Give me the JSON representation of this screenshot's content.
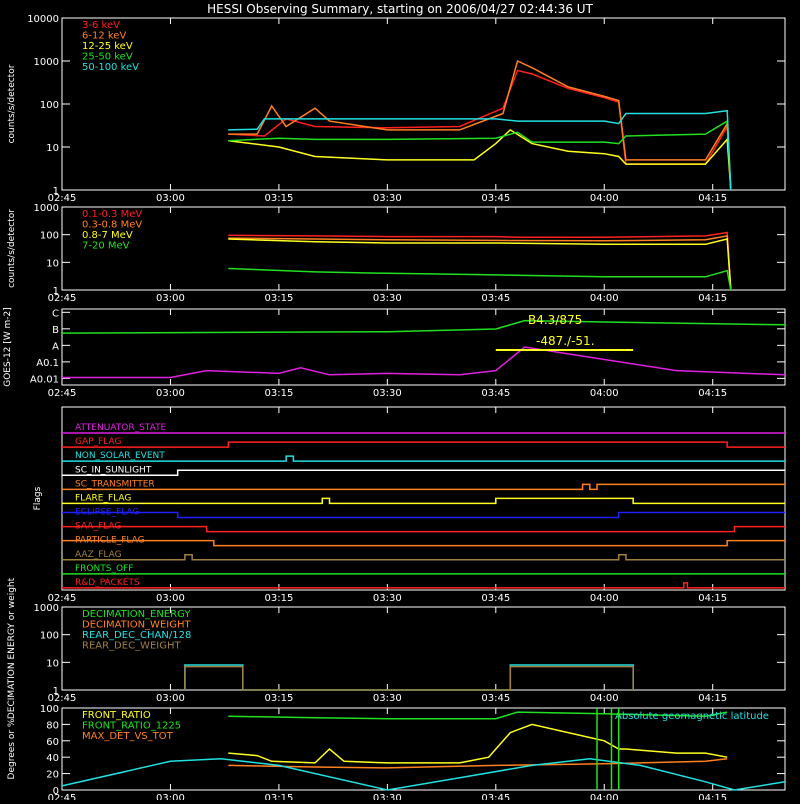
{
  "title": "HESSI Observing Summary, starting on 2006/04/27 02:44:36 UT",
  "time_ticks": [
    "02:45",
    "03:00",
    "03:15",
    "03:30",
    "03:45",
    "04:00",
    "04:15"
  ],
  "colors": {
    "background": "#000000",
    "axes": "#ffffff",
    "red": "#ff2020",
    "orange": "#ff8020",
    "yellow": "#ffff20",
    "green": "#20e020",
    "cyan": "#20e0e0",
    "blue": "#2020ff",
    "magenta": "#e020e0",
    "brown": "#c07020",
    "olive": "#a08040"
  },
  "chart_data": [
    {
      "id": "xray",
      "type": "line",
      "ylabel": "counts/s/detector",
      "yscale": "log",
      "ylim": [
        1,
        10000
      ],
      "y_tick_labels": [
        "1",
        "10",
        "100",
        "1000",
        "10000"
      ],
      "x_units": "UT time",
      "xlim": [
        "02:45",
        "04:25"
      ],
      "legend": [
        {
          "name": "3-6 keV",
          "color": "#ff2020"
        },
        {
          "name": "6-12 keV",
          "color": "#ff8020"
        },
        {
          "name": "12-25 keV",
          "color": "#ffff20"
        },
        {
          "name": "25-50 keV",
          "color": "#20e020"
        },
        {
          "name": "50-100 keV",
          "color": "#20e0e0"
        }
      ],
      "series": [
        {
          "name": "3-6 keV",
          "color": "#ff2020",
          "points": [
            [
              "03:08",
              20
            ],
            [
              "03:13",
              18
            ],
            [
              "03:16",
              45
            ],
            [
              "03:20",
              30
            ],
            [
              "03:30",
              28
            ],
            [
              "03:40",
              30
            ],
            [
              "03:46",
              80
            ],
            [
              "03:48",
              600
            ],
            [
              "03:50",
              500
            ],
            [
              "03:55",
              230
            ],
            [
              "04:00",
              140
            ],
            [
              "04:02",
              110
            ],
            [
              "04:03",
              4
            ],
            [
              "04:14",
              4
            ],
            [
              "04:17",
              30
            ],
            [
              "04:17.5",
              1
            ]
          ]
        },
        {
          "name": "6-12 keV",
          "color": "#ff8020",
          "points": [
            [
              "03:08",
              20
            ],
            [
              "03:12",
              20
            ],
            [
              "03:14",
              90
            ],
            [
              "03:16",
              30
            ],
            [
              "03:20",
              80
            ],
            [
              "03:22",
              40
            ],
            [
              "03:30",
              25
            ],
            [
              "03:40",
              25
            ],
            [
              "03:46",
              60
            ],
            [
              "03:48",
              1000
            ],
            [
              "03:50",
              700
            ],
            [
              "03:55",
              250
            ],
            [
              "04:00",
              150
            ],
            [
              "04:02",
              120
            ],
            [
              "04:03",
              5
            ],
            [
              "04:14",
              5
            ],
            [
              "04:17",
              35
            ],
            [
              "04:17.5",
              1
            ]
          ]
        },
        {
          "name": "12-25 keV",
          "color": "#ffff20",
          "points": [
            [
              "03:08",
              14
            ],
            [
              "03:15",
              10
            ],
            [
              "03:20",
              6
            ],
            [
              "03:30",
              5
            ],
            [
              "03:42",
              5
            ],
            [
              "03:45",
              12
            ],
            [
              "03:47",
              25
            ],
            [
              "03:50",
              12
            ],
            [
              "03:55",
              8
            ],
            [
              "04:00",
              7
            ],
            [
              "04:02",
              6
            ],
            [
              "04:03",
              4
            ],
            [
              "04:14",
              4
            ],
            [
              "04:17",
              15
            ],
            [
              "04:17.5",
              1
            ]
          ]
        },
        {
          "name": "25-50 keV",
          "color": "#20e020",
          "points": [
            [
              "03:08",
              14
            ],
            [
              "03:15",
              16
            ],
            [
              "03:20",
              15
            ],
            [
              "03:30",
              15
            ],
            [
              "03:45",
              16
            ],
            [
              "03:48",
              22
            ],
            [
              "03:50",
              13
            ],
            [
              "04:00",
              13
            ],
            [
              "04:02",
              12
            ],
            [
              "04:03",
              18
            ],
            [
              "04:14",
              20
            ],
            [
              "04:17",
              40
            ],
            [
              "04:17.5",
              1
            ]
          ]
        },
        {
          "name": "50-100 keV",
          "color": "#20e0e0",
          "points": [
            [
              "03:08",
              25
            ],
            [
              "03:12",
              26
            ],
            [
              "03:13",
              45
            ],
            [
              "03:30",
              45
            ],
            [
              "03:45",
              45
            ],
            [
              "03:48",
              40
            ],
            [
              "04:00",
              40
            ],
            [
              "04:02",
              35
            ],
            [
              "04:03",
              60
            ],
            [
              "04:14",
              60
            ],
            [
              "04:17",
              70
            ],
            [
              "04:17.5",
              1
            ]
          ]
        }
      ]
    },
    {
      "id": "gamma",
      "type": "line",
      "ylabel": "counts/s/detector",
      "yscale": "log",
      "ylim": [
        1,
        1000
      ],
      "y_tick_labels": [
        "1",
        "10",
        "100",
        "1000"
      ],
      "legend": [
        {
          "name": "0.1-0.3 MeV",
          "color": "#ff2020"
        },
        {
          "name": "0.3-0.8 MeV",
          "color": "#ff8020"
        },
        {
          "name": "0.8-7 MeV",
          "color": "#ffff20"
        },
        {
          "name": "7-20 MeV",
          "color": "#20e020"
        }
      ],
      "series": [
        {
          "name": "0.1-0.3 MeV",
          "color": "#ff2020",
          "points": [
            [
              "03:08",
              95
            ],
            [
              "03:20",
              90
            ],
            [
              "03:30",
              85
            ],
            [
              "03:45",
              85
            ],
            [
              "03:48",
              80
            ],
            [
              "04:00",
              80
            ],
            [
              "04:14",
              90
            ],
            [
              "04:17",
              120
            ],
            [
              "04:17.5",
              1
            ]
          ]
        },
        {
          "name": "0.3-0.8 MeV",
          "color": "#ff8020",
          "points": [
            [
              "03:08",
              75
            ],
            [
              "03:20",
              70
            ],
            [
              "03:30",
              65
            ],
            [
              "03:45",
              62
            ],
            [
              "04:00",
              60
            ],
            [
              "04:14",
              65
            ],
            [
              "04:17",
              90
            ],
            [
              "04:17.5",
              1
            ]
          ]
        },
        {
          "name": "0.8-7 MeV",
          "color": "#ffff20",
          "points": [
            [
              "03:08",
              70
            ],
            [
              "03:20",
              55
            ],
            [
              "03:30",
              50
            ],
            [
              "03:45",
              50
            ],
            [
              "04:00",
              45
            ],
            [
              "04:14",
              45
            ],
            [
              "04:17",
              70
            ],
            [
              "04:17.5",
              1
            ]
          ]
        },
        {
          "name": "7-20 MeV",
          "color": "#20e020",
          "points": [
            [
              "03:08",
              6
            ],
            [
              "03:20",
              4.5
            ],
            [
              "03:30",
              4
            ],
            [
              "03:45",
              3.5
            ],
            [
              "04:00",
              3
            ],
            [
              "04:14",
              3
            ],
            [
              "04:17",
              5
            ],
            [
              "04:17.5",
              1
            ]
          ]
        }
      ]
    },
    {
      "id": "goes",
      "type": "line",
      "ylabel": "GOES-12 [W m-2]",
      "yscale": "log",
      "y_tick_labels": [
        "A0.01",
        "A0.1",
        "A",
        "B",
        "C"
      ],
      "annotations": [
        "B4.3/875",
        "-487./-51."
      ],
      "series": [
        {
          "name": "high channel",
          "color": "#20e020",
          "level_points": [
            [
              "02:45",
              8.5
            ],
            [
              "03:30",
              8.6
            ],
            [
              "03:45",
              8.8
            ],
            [
              "03:49",
              9.4
            ],
            [
              "04:00",
              9.3
            ],
            [
              "04:25",
              9.1
            ]
          ]
        },
        {
          "name": "low channel",
          "color": "#e020e0",
          "level_points": [
            [
              "02:45",
              5.3
            ],
            [
              "03:00",
              5.3
            ],
            [
              "03:05",
              5.8
            ],
            [
              "03:15",
              5.6
            ],
            [
              "03:18",
              6.0
            ],
            [
              "03:22",
              5.5
            ],
            [
              "03:30",
              5.6
            ],
            [
              "03:40",
              5.5
            ],
            [
              "03:45",
              5.8
            ],
            [
              "03:49",
              7.5
            ],
            [
              "03:55",
              7.0
            ],
            [
              "04:00",
              6.6
            ],
            [
              "04:10",
              5.8
            ],
            [
              "04:25",
              5.5
            ]
          ]
        }
      ]
    },
    {
      "id": "flags",
      "type": "line",
      "ylabel": "Flags",
      "flags": [
        {
          "name": "ATTENUATOR_STATE",
          "color": "#e020e0"
        },
        {
          "name": "GAP_FLAG",
          "color": "#ff2020"
        },
        {
          "name": "NON_SOLAR_EVENT",
          "color": "#20e0e0"
        },
        {
          "name": "SC_IN_SUNLIGHT",
          "color": "#ffffff"
        },
        {
          "name": "SC_TRANSMITTER",
          "color": "#ff8020"
        },
        {
          "name": "FLARE_FLAG",
          "color": "#ffff20"
        },
        {
          "name": "ECLIPSE_FLAG",
          "color": "#2020ff"
        },
        {
          "name": "SAA_FLAG",
          "color": "#ff2020"
        },
        {
          "name": "PARTICLE_FLAG",
          "color": "#ff8020"
        },
        {
          "name": "AAZ_FLAG",
          "color": "#a08040"
        },
        {
          "name": "FRONTS_OFF",
          "color": "#20e020"
        },
        {
          "name": "R&D_PACKETS",
          "color": "#ff2020"
        }
      ]
    },
    {
      "id": "decimation",
      "type": "line",
      "ylabel": "DECIMATION ENERGY or weight",
      "yscale": "log",
      "ylim": [
        1,
        1000
      ],
      "y_tick_labels": [
        "1",
        "10",
        "100",
        "1000"
      ],
      "legend": [
        {
          "name": "DECIMATION_ENERGY",
          "color": "#20e020"
        },
        {
          "name": "DECIMATION_WEIGHT",
          "color": "#ff8020"
        },
        {
          "name": "REAR_DEC_CHAN/128",
          "color": "#20e0e0"
        },
        {
          "name": "REAR_DEC_WEIGHT",
          "color": "#a08040"
        }
      ],
      "series": [
        {
          "name": "REAR_DEC_CHAN/128",
          "color": "#20e0e0",
          "points": [
            [
              "03:02",
              1
            ],
            [
              "03:02",
              8
            ],
            [
              "03:10",
              8
            ],
            [
              "03:10",
              1
            ],
            [
              "03:47",
              1
            ],
            [
              "03:47",
              8
            ],
            [
              "04:04",
              8
            ],
            [
              "04:04",
              1
            ]
          ]
        },
        {
          "name": "REAR_DEC_WEIGHT",
          "color": "#a08040",
          "points": [
            [
              "03:02",
              1
            ],
            [
              "03:02",
              7
            ],
            [
              "03:10",
              7
            ],
            [
              "03:10",
              1
            ],
            [
              "03:47",
              1
            ],
            [
              "03:47",
              7
            ],
            [
              "04:04",
              7
            ],
            [
              "04:04",
              1
            ]
          ]
        }
      ]
    },
    {
      "id": "ratios",
      "type": "line",
      "ylabel": "Degrees or %",
      "ylim": [
        0,
        100
      ],
      "y_tick_labels": [
        "0",
        "20",
        "40",
        "60",
        "80",
        "100"
      ],
      "legend": [
        {
          "name": "FRONT_RATIO",
          "color": "#ffff20"
        },
        {
          "name": "FRONT_RATIO_1225",
          "color": "#20e020"
        },
        {
          "name": "MAX_DET_VS_TOT",
          "color": "#ff8020"
        },
        {
          "name": "Absolute geomagnetic latitude",
          "color": "#20e0e0"
        }
      ],
      "series": [
        {
          "name": "FRONT_RATIO",
          "color": "#ffff20",
          "points": [
            [
              "03:08",
              45
            ],
            [
              "03:12",
              42
            ],
            [
              "03:14",
              35
            ],
            [
              "03:20",
              33
            ],
            [
              "03:22",
              50
            ],
            [
              "03:24",
              35
            ],
            [
              "03:30",
              33
            ],
            [
              "03:40",
              33
            ],
            [
              "03:44",
              40
            ],
            [
              "03:47",
              70
            ],
            [
              "03:50",
              80
            ],
            [
              "03:55",
              70
            ],
            [
              "04:00",
              60
            ],
            [
              "04:02",
              50
            ],
            [
              "04:03",
              50
            ],
            [
              "04:10",
              45
            ],
            [
              "04:14",
              45
            ],
            [
              "04:17",
              40
            ]
          ]
        },
        {
          "name": "FRONT_RATIO_1225",
          "color": "#20e020",
          "points": [
            [
              "03:08",
              90
            ],
            [
              "03:20",
              88
            ],
            [
              "03:30",
              87
            ],
            [
              "03:45",
              87
            ],
            [
              "03:48",
              95
            ],
            [
              "04:00",
              93
            ],
            [
              "04:14",
              90
            ],
            [
              "04:17",
              95
            ]
          ]
        },
        {
          "name": "MAX_DET_VS_TOT",
          "color": "#ff8020",
          "points": [
            [
              "03:08",
              30
            ],
            [
              "03:20",
              28
            ],
            [
              "03:30",
              27
            ],
            [
              "03:45",
              30
            ],
            [
              "04:00",
              32
            ],
            [
              "04:14",
              35
            ],
            [
              "04:17",
              38
            ]
          ]
        },
        {
          "name": "Absolute geomagnetic latitude",
          "color": "#20e0e0",
          "points": [
            [
              "02:45",
              5
            ],
            [
              "03:00",
              35
            ],
            [
              "03:07",
              38
            ],
            [
              "03:15",
              30
            ],
            [
              "03:30",
              0
            ],
            [
              "03:40",
              15
            ],
            [
              "03:50",
              30
            ],
            [
              "03:58",
              38
            ],
            [
              "04:05",
              30
            ],
            [
              "04:14",
              10
            ],
            [
              "04:18",
              0
            ],
            [
              "04:25",
              10
            ]
          ]
        }
      ]
    }
  ]
}
